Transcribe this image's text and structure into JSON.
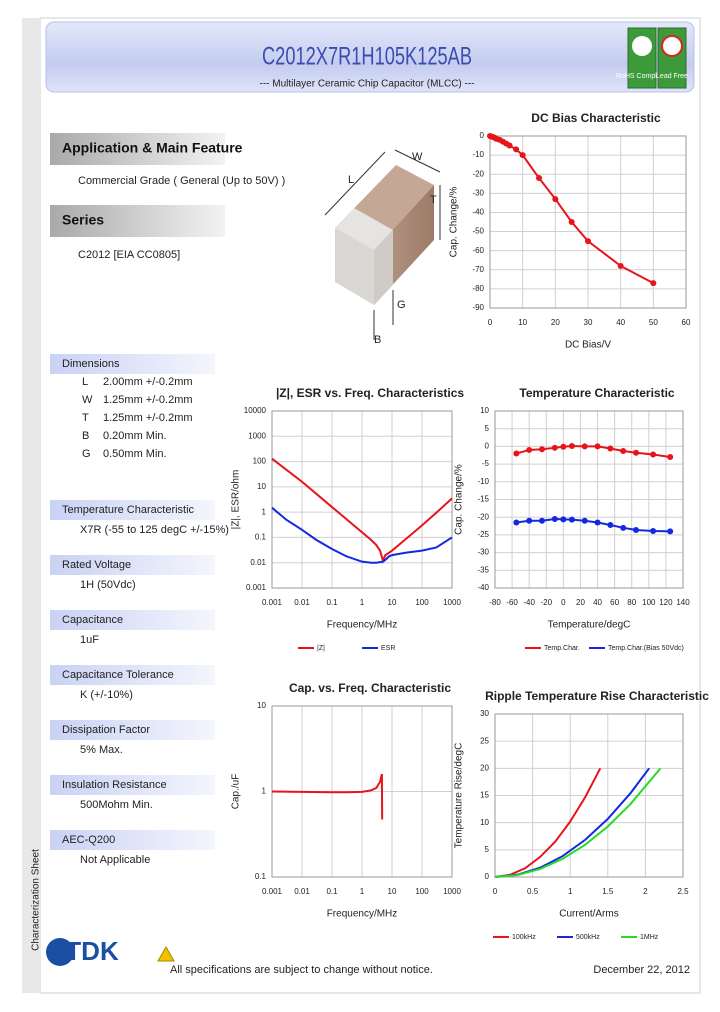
{
  "header": {
    "title": "C2012X7R1H105K125AB",
    "subtitle": "--- Multilayer Ceramic Chip Capacitor (MLCC) ---",
    "badges": [
      "RoHS Compliant",
      "Lead Free"
    ]
  },
  "side_label": "Characterization Sheet",
  "logo": "TDK",
  "main_sections": [
    {
      "title": "Application & Main Feature",
      "text": "Commercial Grade ( General (Up to 50V) )"
    },
    {
      "title": "Series",
      "text": "C2012 [EIA CC0805]"
    }
  ],
  "dimensions": {
    "title": "Dimensions",
    "rows": [
      [
        "L",
        "2.00mm +/-0.2mm"
      ],
      [
        "W",
        "1.25mm +/-0.2mm"
      ],
      [
        "T",
        "1.25mm +/-0.2mm"
      ],
      [
        "B",
        "0.20mm Min."
      ],
      [
        "G",
        "0.50mm Min."
      ]
    ]
  },
  "specs": [
    {
      "title": "Temperature Characteristic",
      "text": "X7R (-55 to 125 degC +/-15%)"
    },
    {
      "title": "Rated Voltage",
      "text": "1H (50Vdc)"
    },
    {
      "title": "Capacitance",
      "text": "1uF"
    },
    {
      "title": "Capacitance Tolerance",
      "text": "K (+/-10%)"
    },
    {
      "title": "Dissipation Factor",
      "text": "5% Max."
    },
    {
      "title": "Insulation Resistance",
      "text": "500Mohm Min."
    },
    {
      "title": "AEC-Q200",
      "text": "Not Applicable"
    }
  ],
  "diagram": {
    "labels": [
      "W",
      "L",
      "T",
      "B",
      "G"
    ]
  },
  "footer": {
    "notice": "All specifications are subject to change without notice.",
    "date": "December 22, 2012"
  },
  "chart_data": [
    {
      "type": "line",
      "title": "DC Bias Characteristic",
      "x_label": "DC Bias/V",
      "y_label": "Cap. Change/%",
      "markers": true,
      "grid": true,
      "xlim": [
        0,
        60
      ],
      "xticks": [
        0,
        10,
        20,
        30,
        40,
        50,
        60
      ],
      "ylim": [
        -90,
        0
      ],
      "yticks": [
        0,
        -10,
        -20,
        -30,
        -40,
        -50,
        -60,
        -70,
        -80,
        -90
      ],
      "series": [
        {
          "color": "#e8141b",
          "x": [
            0,
            0.5,
            1,
            1.5,
            2,
            3,
            4,
            5,
            6,
            8,
            10,
            15,
            20,
            25,
            30,
            40,
            50
          ],
          "values": [
            0,
            -0.3,
            -0.6,
            -1,
            -1.5,
            -2,
            -3,
            -4,
            -5,
            -7,
            -10,
            -22,
            -33,
            -45,
            -55,
            -68,
            -77
          ]
        }
      ]
    },
    {
      "type": "line",
      "title": "|Z|, ESR vs. Freq. Characteristics",
      "x_label": "Frequency/MHz",
      "y_label": "|Z|, ESR/ohm",
      "xscale": "log",
      "yscale": "log",
      "grid": true,
      "xlim": [
        0.001,
        1000
      ],
      "xticks": [
        0.001,
        0.01,
        0.1,
        1,
        10,
        100,
        1000
      ],
      "ylim": [
        0.001,
        10000
      ],
      "yticks": [
        0.001,
        0.01,
        0.1,
        1,
        10,
        100,
        1000,
        10000
      ],
      "series": [
        {
          "name": "|Z|",
          "color": "#e8141b",
          "x": [
            0.001,
            0.01,
            0.1,
            1,
            2,
            3,
            4,
            5,
            6,
            8,
            10,
            30,
            100,
            300,
            1000
          ],
          "values": [
            130,
            15.9,
            1.59,
            0.16,
            0.08,
            0.05,
            0.03,
            0.012,
            0.02,
            0.025,
            0.03,
            0.09,
            0.3,
            0.95,
            3.5
          ]
        },
        {
          "name": "ESR",
          "color": "#1428e0",
          "x": [
            0.001,
            0.003,
            0.01,
            0.03,
            0.1,
            0.3,
            1,
            2,
            3,
            5,
            6,
            8,
            10,
            30,
            100,
            300,
            1000
          ],
          "values": [
            1.5,
            0.5,
            0.2,
            0.08,
            0.035,
            0.018,
            0.011,
            0.01,
            0.01,
            0.011,
            0.013,
            0.018,
            0.02,
            0.025,
            0.03,
            0.04,
            0.1
          ]
        }
      ]
    },
    {
      "type": "line",
      "title": "Temperature Characteristic",
      "x_label": "Temperature/degC",
      "y_label": "Cap. Change/%",
      "markers": true,
      "grid": true,
      "xlim": [
        -80,
        140
      ],
      "xticks": [
        -80,
        -60,
        -40,
        -20,
        0,
        20,
        40,
        60,
        80,
        100,
        120,
        140
      ],
      "ylim": [
        -40,
        10
      ],
      "yticks": [
        10,
        5,
        0,
        -5,
        -10,
        -15,
        -20,
        -25,
        -30,
        -35,
        -40
      ],
      "series": [
        {
          "name": "Temp.Char.",
          "color": "#e8141b",
          "x": [
            -55,
            -40,
            -25,
            -10,
            0,
            10,
            25,
            40,
            55,
            70,
            85,
            105,
            125
          ],
          "values": [
            -2,
            -1,
            -0.8,
            -0.4,
            -0.1,
            0.1,
            0,
            0,
            -0.6,
            -1.3,
            -1.8,
            -2.3,
            -3
          ]
        },
        {
          "name": "Temp.Char.(Bias 50Vdc)",
          "color": "#1428e0",
          "x": [
            -55,
            -40,
            -25,
            -10,
            0,
            10,
            25,
            40,
            55,
            70,
            85,
            105,
            125
          ],
          "values": [
            -21.5,
            -21,
            -21,
            -20.5,
            -20.6,
            -20.7,
            -21,
            -21.5,
            -22.2,
            -23,
            -23.6,
            -23.9,
            -24
          ]
        }
      ]
    },
    {
      "type": "line",
      "title": "Cap. vs. Freq. Characteristic",
      "x_label": "Frequency/MHz",
      "y_label": "Cap./uF",
      "xscale": "log",
      "yscale": "log",
      "grid": true,
      "xlim": [
        0.001,
        1000
      ],
      "xticks": [
        0.001,
        0.01,
        0.1,
        1,
        10,
        100,
        1000
      ],
      "ylim": [
        0.1,
        10
      ],
      "yticks": [
        10,
        1,
        0.1
      ],
      "series": [
        {
          "color": "#e8141b",
          "x": [
            0.001,
            0.01,
            0.1,
            0.3,
            1,
            2,
            3,
            4,
            4.6,
            4.7
          ],
          "values": [
            1,
            0.99,
            0.98,
            0.98,
            0.99,
            1.03,
            1.1,
            1.3,
            1.6,
            0.47
          ]
        }
      ]
    },
    {
      "type": "line",
      "title": "Ripple Temperature Rise Characteristic",
      "x_label": "Current/Arms",
      "y_label": "Temperature Rise/degC",
      "grid": true,
      "xlim": [
        0,
        2.5
      ],
      "xticks": [
        0,
        0.5,
        1,
        1.5,
        2,
        2.5
      ],
      "ylim": [
        0,
        30
      ],
      "yticks": [
        30,
        25,
        20,
        15,
        10,
        5,
        0
      ],
      "series": [
        {
          "name": "100kHz",
          "color": "#e8141b",
          "x": [
            0,
            0.2,
            0.4,
            0.6,
            0.8,
            1,
            1.2,
            1.4
          ],
          "values": [
            0,
            0.4,
            1.6,
            3.7,
            6.5,
            10.2,
            14.7,
            20
          ]
        },
        {
          "name": "500kHz",
          "color": "#1428e0",
          "x": [
            0,
            0.3,
            0.6,
            0.9,
            1.2,
            1.5,
            1.8,
            2.05
          ],
          "values": [
            0,
            0.43,
            1.71,
            3.85,
            6.85,
            10.7,
            15.4,
            20
          ]
        },
        {
          "name": "1MHz",
          "color": "#22dd22",
          "x": [
            0,
            0.3,
            0.6,
            0.9,
            1.2,
            1.5,
            1.8,
            2.2
          ],
          "values": [
            0,
            0.37,
            1.49,
            3.35,
            5.95,
            9.3,
            13.4,
            20
          ]
        }
      ]
    }
  ]
}
